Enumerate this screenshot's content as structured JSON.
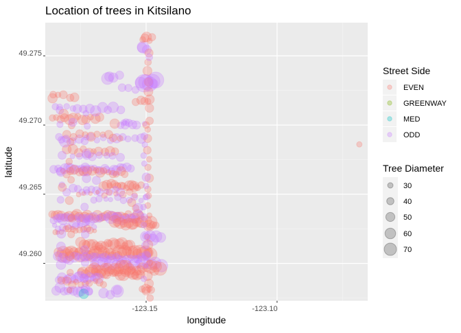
{
  "chart_data": {
    "type": "scatter",
    "title": "Location of trees in Kitsilano",
    "xlabel": "longitude",
    "ylabel": "latitude",
    "xlim": [
      -123.1885,
      -123.0654
    ],
    "ylim": [
      49.2573,
      49.2774
    ],
    "x_ticks": [
      -123.15,
      -123.1
    ],
    "x_tick_labels": [
      "-123.15",
      "-123.10"
    ],
    "y_ticks": [
      49.26,
      49.265,
      49.27,
      49.275
    ],
    "y_tick_labels": [
      "49.260",
      "49.265",
      "49.270",
      "49.275"
    ],
    "grid": true,
    "legend_color": {
      "title": "Street Side",
      "entries": [
        {
          "label": "EVEN",
          "color": "#F8766D"
        },
        {
          "label": "GREENWAY",
          "color": "#7CAE00"
        },
        {
          "label": "MED",
          "color": "#00BFC4"
        },
        {
          "label": "ODD",
          "color": "#C77CFF"
        }
      ]
    },
    "legend_size": {
      "title": "Tree Diameter",
      "entries": [
        {
          "label": "30",
          "value": 30
        },
        {
          "label": "40",
          "value": 40
        },
        {
          "label": "50",
          "value": 50
        },
        {
          "label": "60",
          "value": 60
        },
        {
          "label": "70",
          "value": 70
        }
      ]
    },
    "rows": [
      {
        "lat": 49.2634,
        "x_from": -123.1855,
        "x_to": -123.1525,
        "side": "EVEN",
        "n": 34,
        "size": 12
      },
      {
        "lat": 49.2632,
        "x_from": -123.185,
        "x_to": -123.153,
        "side": "ODD",
        "n": 22,
        "size": 14
      },
      {
        "lat": 49.2629,
        "x_from": -123.162,
        "x_to": -123.146,
        "side": "EVEN",
        "n": 16,
        "size": 14
      },
      {
        "lat": 49.2626,
        "x_from": -123.185,
        "x_to": -123.17,
        "side": "ODD",
        "n": 10,
        "size": 8
      },
      {
        "lat": 49.2624,
        "x_from": -123.185,
        "x_to": -123.17,
        "side": "EVEN",
        "n": 12,
        "size": 8
      },
      {
        "lat": 49.2618,
        "x_from": -123.15,
        "x_to": -123.1445,
        "side": "ODD",
        "n": 5,
        "size": 14
      },
      {
        "lat": 49.2614,
        "x_from": -123.175,
        "x_to": -123.156,
        "side": "EVEN",
        "n": 18,
        "size": 14
      },
      {
        "lat": 49.2607,
        "x_from": -123.1835,
        "x_to": -123.1485,
        "side": "EVEN",
        "n": 38,
        "size": 16
      },
      {
        "lat": 49.2604,
        "x_from": -123.1835,
        "x_to": -123.15,
        "side": "ODD",
        "n": 24,
        "size": 12
      },
      {
        "lat": 49.2599,
        "x_from": -123.17,
        "x_to": -123.1445,
        "side": "ODD",
        "n": 16,
        "size": 16
      },
      {
        "lat": 49.2596,
        "x_from": -123.17,
        "x_to": -123.1445,
        "side": "EVEN",
        "n": 20,
        "size": 16
      },
      {
        "lat": 49.2593,
        "x_from": -123.175,
        "x_to": -123.152,
        "side": "EVEN",
        "n": 22,
        "size": 14
      },
      {
        "lat": 49.2589,
        "x_from": -123.1835,
        "x_to": -123.168,
        "side": "ODD",
        "n": 14,
        "size": 12
      },
      {
        "lat": 49.2586,
        "x_from": -123.182,
        "x_to": -123.166,
        "side": "EVEN",
        "n": 10,
        "size": 10
      },
      {
        "lat": 49.2581,
        "x_from": -123.184,
        "x_to": -123.172,
        "side": "ODD",
        "n": 10,
        "size": 12
      },
      {
        "lat": 49.2579,
        "x_from": -123.166,
        "x_to": -123.161,
        "side": "ODD",
        "n": 3,
        "size": 16
      },
      {
        "lat": 49.2581,
        "x_from": -123.1515,
        "x_to": -123.148,
        "side": "EVEN",
        "n": 4,
        "size": 12
      },
      {
        "lat": 49.2656,
        "x_from": -123.166,
        "x_to": -123.152,
        "side": "EVEN",
        "n": 16,
        "size": 12
      },
      {
        "lat": 49.2653,
        "x_from": -123.18,
        "x_to": -123.16,
        "side": "ODD",
        "n": 12,
        "size": 10
      },
      {
        "lat": 49.265,
        "x_from": -123.176,
        "x_to": -123.154,
        "side": "EVEN",
        "n": 10,
        "size": 8
      },
      {
        "lat": 49.2647,
        "x_from": -123.17,
        "x_to": -123.15,
        "side": "ODD",
        "n": 10,
        "size": 9
      },
      {
        "lat": 49.2668,
        "x_from": -123.185,
        "x_to": -123.156,
        "side": "ODD",
        "n": 24,
        "size": 12
      },
      {
        "lat": 49.2666,
        "x_from": -123.182,
        "x_to": -123.158,
        "side": "EVEN",
        "n": 16,
        "size": 11
      },
      {
        "lat": 49.2681,
        "x_from": -123.18,
        "x_to": -123.162,
        "side": "EVEN",
        "n": 10,
        "size": 11
      },
      {
        "lat": 49.2678,
        "x_from": -123.178,
        "x_to": -123.16,
        "side": "ODD",
        "n": 8,
        "size": 10
      },
      {
        "lat": 49.269,
        "x_from": -123.183,
        "x_to": -123.152,
        "side": "ODD",
        "n": 14,
        "size": 11
      },
      {
        "lat": 49.2692,
        "x_from": -123.18,
        "x_to": -123.16,
        "side": "EVEN",
        "n": 10,
        "size": 11
      },
      {
        "lat": 49.2705,
        "x_from": -123.186,
        "x_to": -123.168,
        "side": "EVEN",
        "n": 12,
        "size": 12
      },
      {
        "lat": 49.2701,
        "x_from": -123.16,
        "x_to": -123.154,
        "side": "ODD",
        "n": 6,
        "size": 10
      },
      {
        "lat": 49.2712,
        "x_from": -123.185,
        "x_to": -123.16,
        "side": "ODD",
        "n": 12,
        "size": 12
      },
      {
        "lat": 49.2717,
        "x_from": -123.154,
        "x_to": -123.1485,
        "side": "EVEN",
        "n": 4,
        "size": 13
      },
      {
        "lat": 49.2721,
        "x_from": -123.186,
        "x_to": -123.177,
        "side": "EVEN",
        "n": 5,
        "size": 12
      },
      {
        "lat": 49.2735,
        "x_from": -123.165,
        "x_to": -123.16,
        "side": "ODD",
        "n": 3,
        "size": 14
      },
      {
        "lat": 49.2731,
        "x_from": -123.152,
        "x_to": -123.146,
        "side": "ODD",
        "n": 5,
        "size": 20
      },
      {
        "lat": 49.2726,
        "x_from": -123.159,
        "x_to": -123.154,
        "side": "ODD",
        "n": 3,
        "size": 9
      },
      {
        "lat": 49.2755,
        "x_from": -123.1515,
        "x_to": -123.15,
        "side": "ODD",
        "n": 2,
        "size": 14
      },
      {
        "lat": 49.2762,
        "x_from": -123.151,
        "x_to": -123.148,
        "side": "EVEN",
        "n": 3,
        "size": 12
      }
    ],
    "columns": [
      {
        "lon": -123.149,
        "y_from": 49.2585,
        "y_to": 49.276,
        "side": "EVEN",
        "n": 26,
        "size": 11
      },
      {
        "lon": -123.1505,
        "y_from": 49.259,
        "y_to": 49.27,
        "side": "ODD",
        "n": 16,
        "size": 10
      },
      {
        "lon": -123.173,
        "y_from": 49.258,
        "y_to": 49.271,
        "side": "ODD",
        "n": 14,
        "size": 10
      },
      {
        "lon": -123.179,
        "y_from": 49.258,
        "y_to": 49.27,
        "side": "EVEN",
        "n": 10,
        "size": 11
      },
      {
        "lon": -123.1825,
        "y_from": 49.26,
        "y_to": 49.27,
        "side": "ODD",
        "n": 10,
        "size": 11
      }
    ],
    "points": [
      {
        "lon": -123.1738,
        "lat": 49.2578,
        "side": "MED",
        "size": 14
      },
      {
        "lon": -123.172,
        "lat": 49.258,
        "side": "ODD",
        "size": 12
      },
      {
        "lon": -123.0686,
        "lat": 49.2686,
        "side": "EVEN",
        "size": 8
      },
      {
        "lon": -123.1855,
        "lat": 49.2722,
        "side": "EVEN",
        "size": 10
      },
      {
        "lon": -123.183,
        "lat": 49.2713,
        "side": "ODD",
        "size": 9
      },
      {
        "lon": -123.1815,
        "lat": 49.2708,
        "side": "EVEN",
        "size": 14
      },
      {
        "lon": -123.164,
        "lat": 49.2735,
        "side": "ODD",
        "size": 14
      },
      {
        "lon": -123.162,
        "lat": 49.2701,
        "side": "EVEN",
        "size": 14
      },
      {
        "lon": -123.158,
        "lat": 49.27,
        "side": "ODD",
        "size": 12
      },
      {
        "lon": -123.1555,
        "lat": 49.2644,
        "side": "EVEN",
        "size": 12
      },
      {
        "lon": -123.154,
        "lat": 49.264,
        "side": "EVEN",
        "size": 10
      },
      {
        "lon": -123.153,
        "lat": 49.264,
        "side": "ODD",
        "size": 14
      },
      {
        "lon": -123.161,
        "lat": 49.258,
        "side": "ODD",
        "size": 18
      },
      {
        "lon": -123.15,
        "lat": 49.258,
        "side": "EVEN",
        "size": 12
      },
      {
        "lon": -123.1485,
        "lat": 49.2575,
        "side": "EVEN",
        "size": 10
      },
      {
        "lon": -123.15,
        "lat": 49.2731,
        "side": "ODD",
        "size": 22
      },
      {
        "lon": -123.1505,
        "lat": 49.2763,
        "side": "EVEN",
        "size": 12
      },
      {
        "lon": -123.1515,
        "lat": 49.2756,
        "side": "ODD",
        "size": 14
      },
      {
        "lon": -123.1488,
        "lat": 49.2749,
        "side": "ODD",
        "size": 10
      },
      {
        "lon": -123.147,
        "lat": 49.273,
        "side": "ODD",
        "size": 12
      },
      {
        "lon": -123.15,
        "lat": 49.27,
        "side": "EVEN",
        "size": 10
      },
      {
        "lon": -123.178,
        "lat": 49.2702,
        "side": "ODD",
        "size": 12
      },
      {
        "lon": -123.181,
        "lat": 49.2688,
        "side": "ODD",
        "size": 16
      },
      {
        "lon": -123.182,
        "lat": 49.2655,
        "side": "EVEN",
        "size": 12
      },
      {
        "lon": -123.169,
        "lat": 49.266,
        "side": "ODD",
        "size": 12
      }
    ]
  }
}
